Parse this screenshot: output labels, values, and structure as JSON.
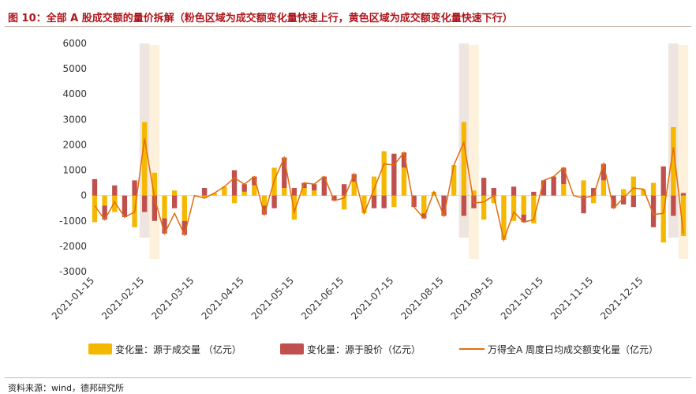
{
  "title": "图 10：全部 A 股成交额的量价拆解（粉色区域为成交额变化量快速上行，黄色区域为成交额变化量快速下行）",
  "source": "资料来源：wind，德邦研究所",
  "colors": {
    "volume": "#f5b800",
    "price": "#c0504d",
    "line": "#e36c0a",
    "pink": "#efe5e0",
    "yellow": "#fdf1dc",
    "title": "#b0151a"
  },
  "chart_data": {
    "type": "bar",
    "title": "",
    "xlabel": "",
    "ylabel": "",
    "ylim": [
      -3000,
      6000
    ],
    "yticks": [
      6000,
      5000,
      4000,
      3000,
      2000,
      1000,
      0,
      -1000,
      -2000,
      -3000
    ],
    "xticks": [
      "2021-01-15",
      "2021-02-15",
      "2021-03-15",
      "2021-04-15",
      "2021-05-15",
      "2021-06-15",
      "2021-07-15",
      "2021-08-15",
      "2021-09-15",
      "2021-10-15",
      "2021-11-15",
      "2021-12-15"
    ],
    "xtick_index": [
      0,
      5,
      10,
      15,
      20,
      25,
      30,
      35,
      40,
      45,
      50,
      55
    ],
    "highlights": [
      {
        "kind": "pink",
        "start": 5,
        "end": 5
      },
      {
        "kind": "yellow",
        "start": 6,
        "end": 6
      },
      {
        "kind": "pink",
        "start": 37,
        "end": 37
      },
      {
        "kind": "yellow",
        "start": 38,
        "end": 38
      },
      {
        "kind": "pink",
        "start": 58,
        "end": 58
      },
      {
        "kind": "yellow",
        "start": 59,
        "end": 59
      }
    ],
    "series": [
      {
        "name": "变化量：源于成交量 （亿元）",
        "values": [
          -1050,
          -400,
          -650,
          0,
          -1250,
          2900,
          900,
          -900,
          200,
          -1000,
          0,
          -100,
          100,
          350,
          -300,
          150,
          400,
          -400,
          1100,
          300,
          -950,
          300,
          200,
          0,
          0,
          -550,
          550,
          -700,
          750,
          1750,
          -450,
          1100,
          0,
          -700,
          150,
          0,
          1200,
          2900,
          200,
          -950,
          -300,
          -1750,
          -1000,
          -750,
          -1100,
          0,
          0,
          450,
          0,
          600,
          -300,
          600,
          0,
          250,
          750,
          250,
          500,
          -1850,
          2700,
          -1600
        ]
      },
      {
        "name": "变化量：源于股价（亿元）",
        "values": [
          650,
          -550,
          400,
          -850,
          600,
          -650,
          -1000,
          -600,
          -500,
          -550,
          0,
          300,
          0,
          0,
          1000,
          300,
          350,
          -350,
          -500,
          1200,
          300,
          200,
          250,
          750,
          -200,
          450,
          300,
          0,
          -500,
          -500,
          1650,
          600,
          -450,
          -200,
          0,
          -800,
          0,
          -800,
          -500,
          700,
          300,
          0,
          350,
          -300,
          150,
          600,
          750,
          650,
          0,
          -700,
          300,
          650,
          -500,
          -350,
          -450,
          0,
          -1250,
          1150,
          -800,
          100
        ]
      },
      {
        "name": "万得全A 周度日均成交额变化量（亿元）",
        "values": [
          -400,
          -950,
          -250,
          -850,
          -650,
          2250,
          -100,
          -1500,
          -700,
          -1550,
          0,
          -100,
          100,
          350,
          700,
          450,
          750,
          -750,
          600,
          1500,
          -650,
          500,
          450,
          750,
          -200,
          -100,
          850,
          -700,
          250,
          1250,
          1200,
          1700,
          -450,
          -900,
          150,
          -800,
          1200,
          2100,
          -300,
          -250,
          0,
          -1750,
          -650,
          -1050,
          -950,
          600,
          750,
          1100,
          0,
          -100,
          0,
          1250,
          -500,
          -100,
          300,
          250,
          -750,
          -700,
          1900,
          -1500
        ]
      }
    ]
  },
  "legend": {
    "volume": "变化量：源于成交量 （亿元）",
    "price": "变化量：源于股价（亿元）",
    "line": "万得全A 周度日均成交额变化量（亿元）"
  }
}
